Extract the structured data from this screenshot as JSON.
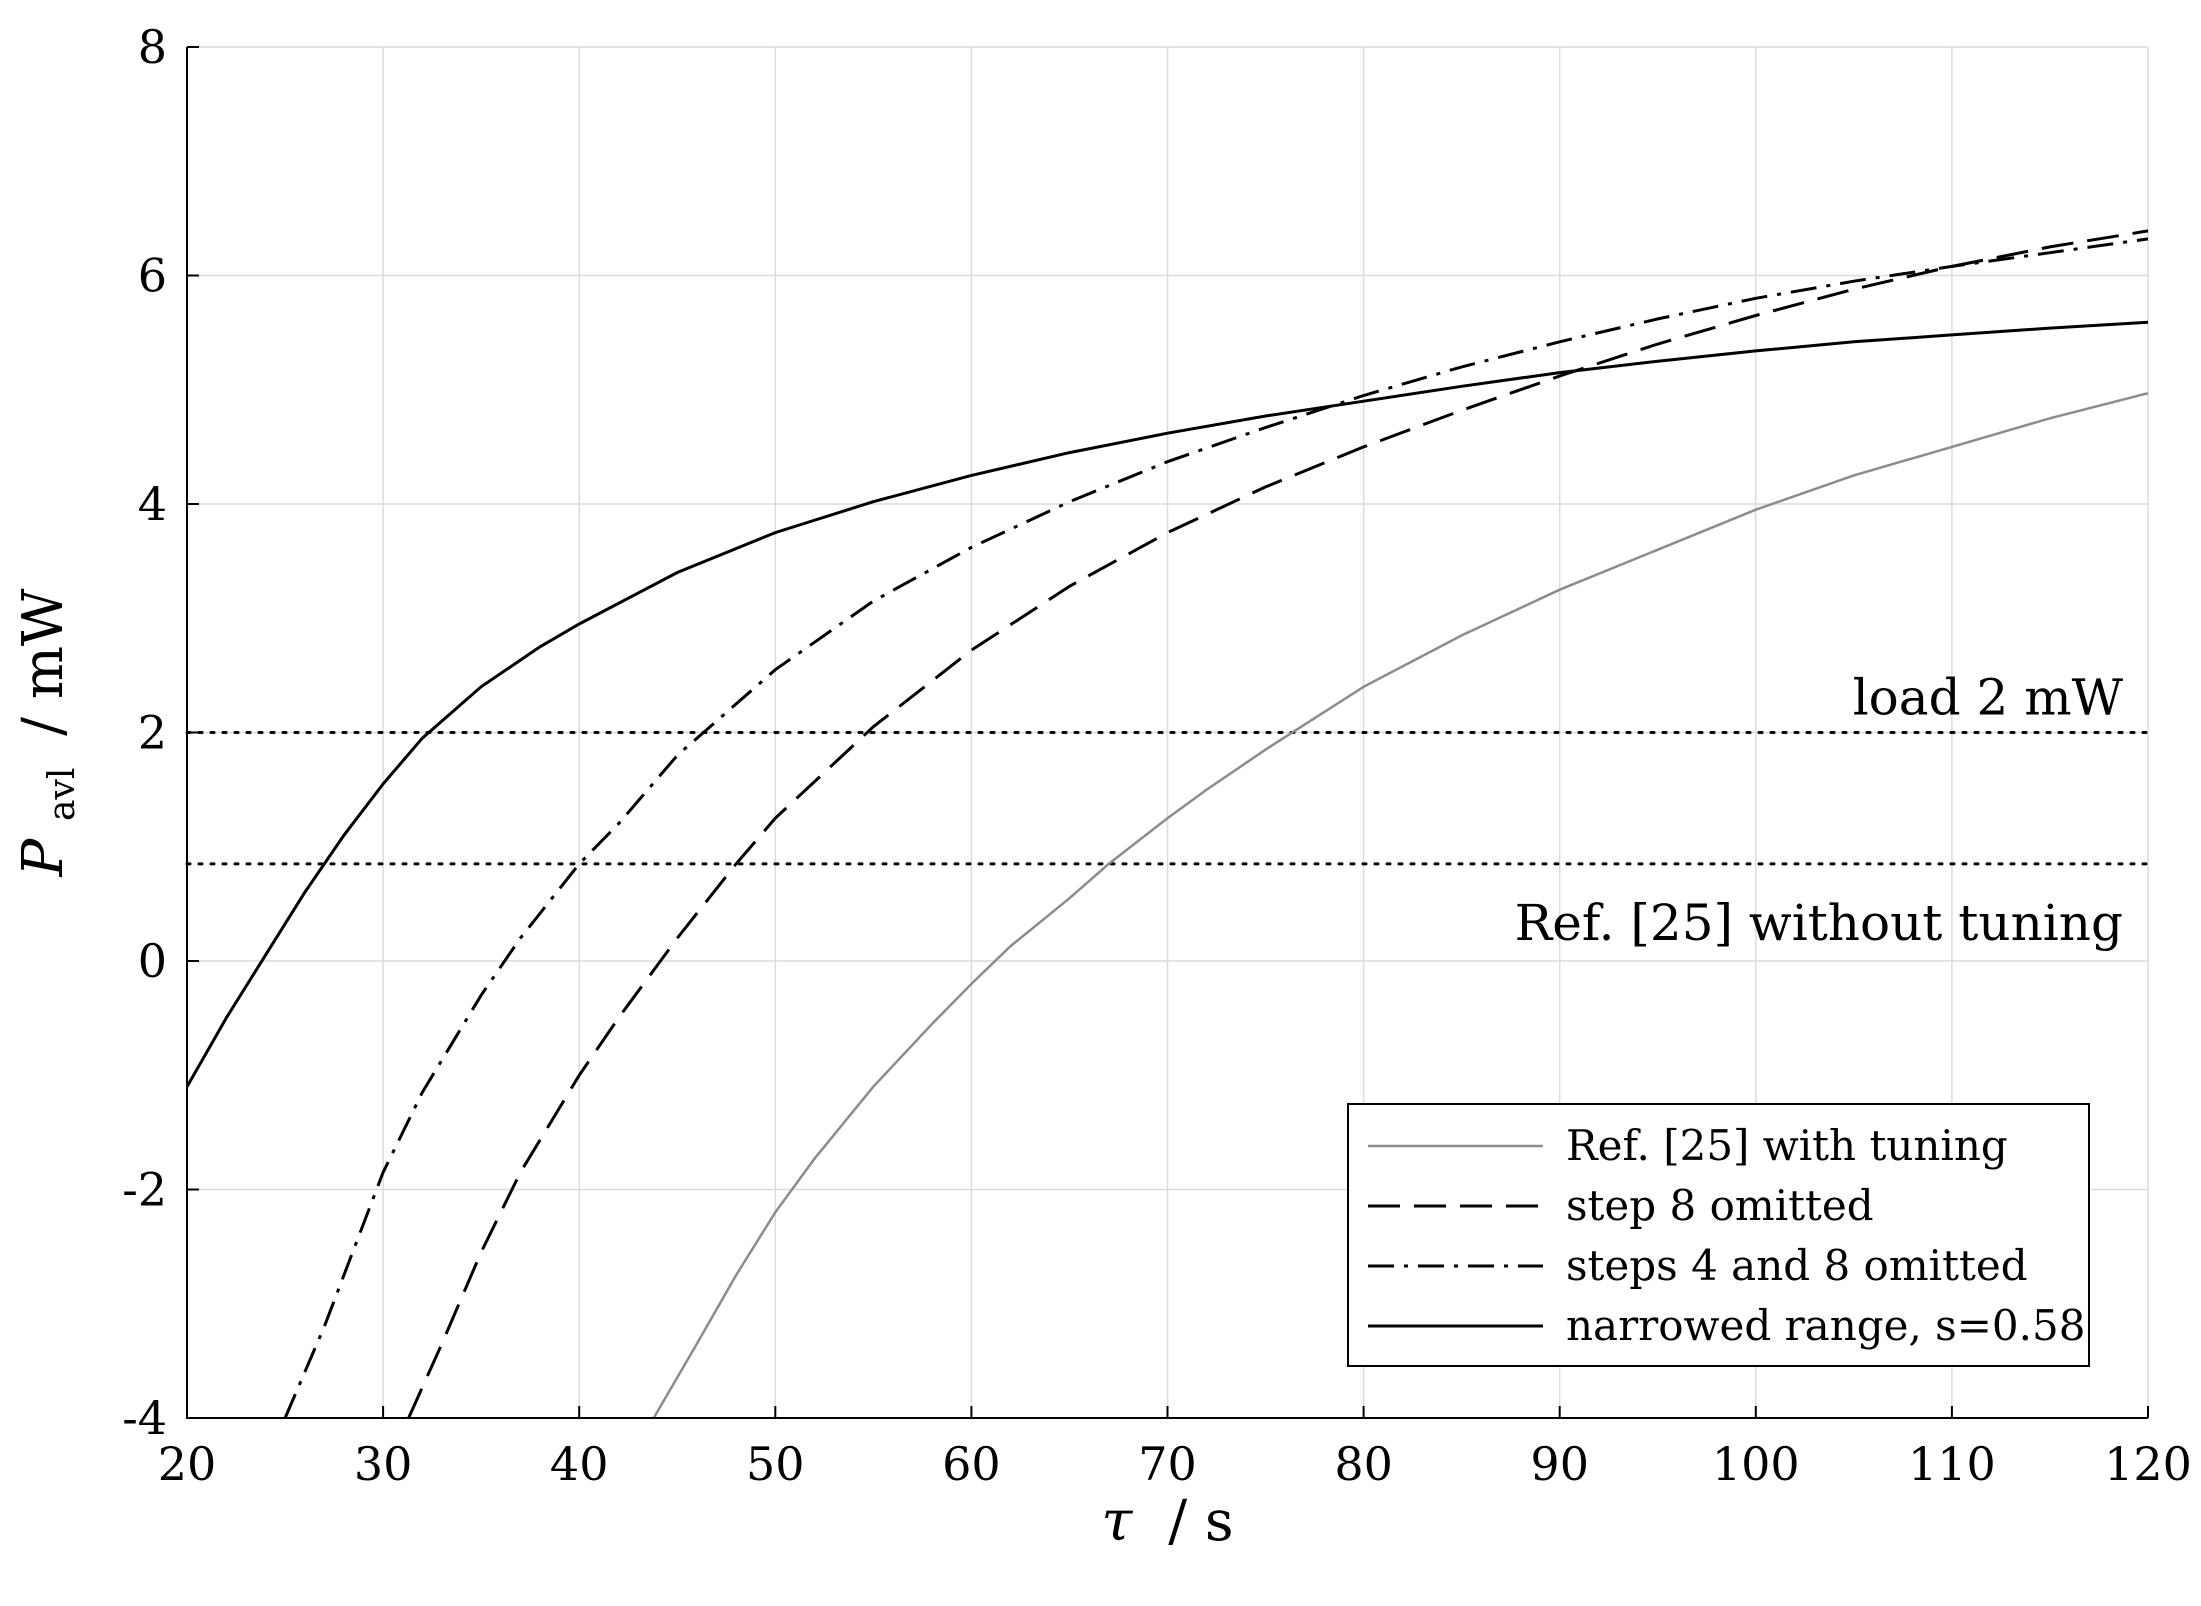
{
  "chart_data": {
    "type": "line",
    "title": "",
    "xlabel": {
      "symbol": "τ",
      "unit": "/ s"
    },
    "ylabel": {
      "symbol": "P",
      "subscript": "avl",
      "unit": "/ mW"
    },
    "xlim": [
      20,
      120
    ],
    "ylim": [
      -4,
      8
    ],
    "xticks": [
      20,
      30,
      40,
      50,
      60,
      70,
      80,
      90,
      100,
      110,
      120
    ],
    "yticks": [
      -4,
      -2,
      0,
      2,
      4,
      6,
      8
    ],
    "grid": true,
    "legend_position": "bottom-right",
    "series": [
      {
        "name": "Ref. [25] with tuning",
        "style": "solid",
        "color": "#8c8c8c",
        "x": [
          43.8,
          46,
          48,
          50,
          52,
          55,
          58,
          60,
          62,
          65,
          67,
          70,
          72,
          75,
          80,
          85,
          90,
          95,
          100,
          105,
          110,
          115,
          120
        ],
        "y": [
          -4.0,
          -3.35,
          -2.75,
          -2.2,
          -1.73,
          -1.1,
          -0.55,
          -0.2,
          0.13,
          0.55,
          0.85,
          1.25,
          1.5,
          1.85,
          2.4,
          2.85,
          3.25,
          3.6,
          3.95,
          4.25,
          4.5,
          4.75,
          4.97
        ]
      },
      {
        "name": "step 8 omitted",
        "style": "dashed",
        "color": "#000000",
        "x": [
          31.3,
          33,
          35,
          37,
          40,
          42,
          45,
          48,
          50,
          55,
          60,
          65,
          70,
          75,
          80,
          85,
          90,
          95,
          100,
          105,
          110,
          115,
          120
        ],
        "y": [
          -4.0,
          -3.35,
          -2.55,
          -1.85,
          -1.0,
          -0.5,
          0.2,
          0.85,
          1.25,
          2.05,
          2.72,
          3.28,
          3.75,
          4.15,
          4.5,
          4.82,
          5.12,
          5.4,
          5.65,
          5.88,
          6.08,
          6.25,
          6.39
        ]
      },
      {
        "name": "steps 4 and 8 omitted",
        "style": "dashdot",
        "color": "#000000",
        "x": [
          25,
          27,
          30,
          32,
          35,
          37,
          40,
          42,
          45,
          50,
          55,
          60,
          65,
          70,
          75,
          80,
          85,
          90,
          95,
          100,
          105,
          110,
          115,
          120
        ],
        "y": [
          -4.0,
          -3.2,
          -1.85,
          -1.15,
          -0.3,
          0.2,
          0.85,
          1.2,
          1.8,
          2.55,
          3.15,
          3.62,
          4.02,
          4.37,
          4.67,
          4.95,
          5.2,
          5.42,
          5.62,
          5.8,
          5.95,
          6.08,
          6.2,
          6.32
        ]
      },
      {
        "name": "narrowed range, s=0.58",
        "style": "solid",
        "color": "#000000",
        "x": [
          20,
          22,
          24,
          26,
          28,
          30,
          32,
          35,
          38,
          40,
          45,
          50,
          55,
          60,
          65,
          70,
          75,
          80,
          85,
          90,
          95,
          100,
          105,
          110,
          115,
          120
        ],
        "y": [
          -1.1,
          -0.5,
          0.05,
          0.6,
          1.1,
          1.55,
          1.95,
          2.4,
          2.75,
          2.95,
          3.4,
          3.75,
          4.02,
          4.25,
          4.45,
          4.62,
          4.77,
          4.9,
          5.03,
          5.15,
          5.25,
          5.34,
          5.42,
          5.48,
          5.54,
          5.59
        ]
      }
    ],
    "reference_lines": [
      {
        "label": "load 2 mW",
        "y": 2.0
      },
      {
        "label": "Ref. [25] without tuning",
        "y": 0.85
      }
    ]
  }
}
